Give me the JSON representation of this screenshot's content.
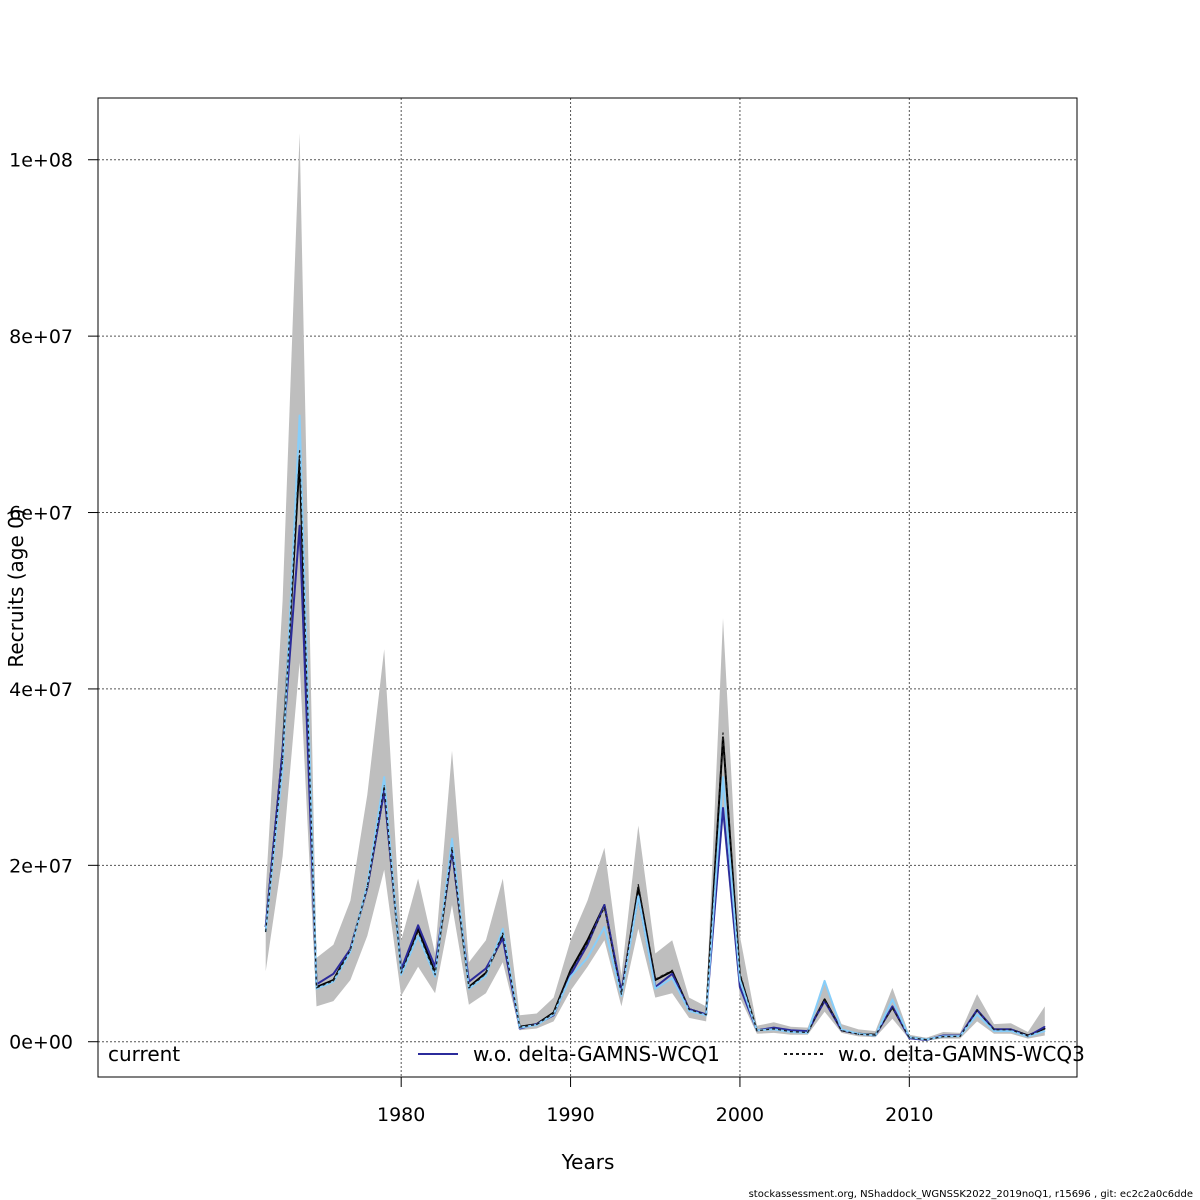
{
  "chart_data": {
    "type": "line",
    "xlabel": "Years",
    "ylabel": "Recruits (age 0)",
    "xlim": [
      1962.1,
      2019.9
    ],
    "ylim": [
      -4000000,
      107000000
    ],
    "x_ticks": [
      {
        "value": 1980,
        "label": "1980"
      },
      {
        "value": 1990,
        "label": "1990"
      },
      {
        "value": 2000,
        "label": "2000"
      },
      {
        "value": 2010,
        "label": "2010"
      }
    ],
    "y_ticks": [
      {
        "value": 0,
        "label": "0e+00"
      },
      {
        "value": 20000000,
        "label": "2e+07"
      },
      {
        "value": 40000000,
        "label": "4e+07"
      },
      {
        "value": 60000000,
        "label": "6e+07"
      },
      {
        "value": 80000000,
        "label": "8e+07"
      },
      {
        "value": 100000000,
        "label": "1e+08"
      }
    ],
    "grid": true,
    "legend_position": "bottom",
    "x": [
      1972,
      1973,
      1974,
      1975,
      1976,
      1977,
      1978,
      1979,
      1980,
      1981,
      1982,
      1983,
      1984,
      1985,
      1986,
      1987,
      1988,
      1989,
      1990,
      1991,
      1992,
      1993,
      1994,
      1995,
      1996,
      1997,
      1998,
      1999,
      2000,
      2001,
      2002,
      2003,
      2004,
      2005,
      2006,
      2007,
      2008,
      2009,
      2010,
      2011,
      2012,
      2013,
      2014,
      2015,
      2016,
      2017,
      2018
    ],
    "band": {
      "name": "current",
      "color": "#bebebe",
      "lower": [
        8000000,
        21000000,
        43000000,
        4000000,
        4600000,
        7000000,
        12000000,
        19500000,
        5200000,
        8500000,
        5500000,
        15500000,
        4200000,
        5500000,
        9000000,
        1300000,
        1500000,
        2300000,
        5800000,
        8500000,
        11500000,
        4000000,
        12800000,
        5000000,
        5500000,
        2700000,
        2300000,
        25000000,
        5000000,
        900000,
        1000000,
        800000,
        800000,
        3400000,
        1000000,
        600000,
        500000,
        2600000,
        300000,
        150000,
        350000,
        350000,
        2300000,
        900000,
        900000,
        350000,
        700000
      ],
      "upper": [
        17000000,
        50000000,
        103000000,
        9500000,
        11000000,
        16000000,
        28000000,
        44500000,
        11500000,
        18500000,
        10000000,
        33000000,
        9000000,
        11500000,
        18500000,
        3000000,
        3200000,
        5000000,
        11500000,
        16000000,
        22000000,
        7500000,
        24500000,
        10000000,
        11500000,
        5000000,
        4000000,
        48000000,
        12000000,
        1800000,
        2200000,
        1700000,
        1600000,
        6600000,
        2000000,
        1400000,
        1200000,
        6100000,
        800000,
        450000,
        1100000,
        1000000,
        5400000,
        2000000,
        2100000,
        1100000,
        4000000
      ]
    },
    "series": [
      {
        "name": "current",
        "color": "#000000",
        "width": 2,
        "dash": "",
        "values": [
          13000000,
          33000000,
          66000000,
          6200000,
          7000000,
          10500000,
          17500000,
          28500000,
          8000000,
          12800000,
          7800000,
          21700000,
          6200000,
          7800000,
          12000000,
          1700000,
          2000000,
          3300000,
          8100000,
          11500000,
          15500000,
          5500000,
          17500000,
          7000000,
          8000000,
          3700000,
          3100000,
          34500000,
          7500000,
          1300000,
          1500000,
          1200000,
          1100000,
          4800000,
          1300000,
          900000,
          800000,
          3900000,
          500000,
          250000,
          600000,
          650000,
          3600000,
          1400000,
          1400000,
          700000,
          1500000
        ]
      },
      {
        "name": "w.o. delta-GAMNS-WCQ1",
        "color": "#2b2b9b",
        "width": 2,
        "dash": "",
        "values": [
          13000000,
          33000000,
          58500000,
          6500000,
          7700000,
          10500000,
          17500000,
          28500000,
          8200000,
          13200000,
          8500000,
          21700000,
          6800000,
          8300000,
          11700000,
          1500000,
          2000000,
          3000000,
          7600000,
          11000000,
          15500000,
          5700000,
          16500000,
          6200000,
          7700000,
          3700000,
          3100000,
          26500000,
          6200000,
          1300000,
          1600000,
          1300000,
          1200000,
          4600000,
          1300000,
          900000,
          700000,
          4000000,
          400000,
          200000,
          700000,
          700000,
          3600000,
          1400000,
          1400000,
          600000,
          1700000
        ]
      },
      {
        "name": "",
        "color": "#87cefa",
        "width": 2,
        "dash": "",
        "values": [
          12500000,
          31000000,
          71000000,
          6000000,
          6800000,
          10200000,
          17800000,
          30000000,
          7600000,
          12000000,
          7400000,
          23000000,
          6000000,
          7500000,
          12800000,
          1600000,
          1900000,
          3100000,
          7400000,
          9500000,
          13000000,
          5200000,
          16500000,
          6000000,
          7200000,
          3500000,
          3000000,
          30000000,
          7000000,
          1300000,
          1400000,
          1100000,
          1000000,
          6900000,
          1400000,
          900000,
          700000,
          4800000,
          500000,
          250000,
          600000,
          650000,
          3100000,
          1200000,
          1200000,
          600000,
          1200000
        ]
      },
      {
        "name": "w.o. delta-GAMNS-WCQ3",
        "color": "#1c1c1c",
        "width": 1.2,
        "dash": "3,3",
        "values": [
          12500000,
          32000000,
          67000000,
          6100000,
          6900000,
          10400000,
          17600000,
          29000000,
          7800000,
          12500000,
          7600000,
          22000000,
          6100000,
          7700000,
          12300000,
          1650000,
          1950000,
          3200000,
          8000000,
          11200000,
          15200000,
          5400000,
          17800000,
          7100000,
          8100000,
          3650000,
          3050000,
          35000000,
          7800000,
          1250000,
          1450000,
          1150000,
          1050000,
          4700000,
          1250000,
          850000,
          750000,
          3850000,
          480000,
          230000,
          580000,
          620000,
          3550000,
          1350000,
          1350000,
          650000,
          1450000
        ]
      }
    ],
    "legend": [
      {
        "label": "current",
        "color": "",
        "dash": ""
      },
      {
        "label": "w.o. delta-GAMNS-WCQ1",
        "color": "#2b2b9b",
        "dash": ""
      },
      {
        "label": "w.o. delta-GAMNS-WCQ3",
        "color": "#1c1c1c",
        "dash": "3,3"
      }
    ],
    "footer": "stockassessment.org, NShaddock_WGNSSK2022_2019noQ1, r15696 , git: ec2c2a0c6dde"
  }
}
